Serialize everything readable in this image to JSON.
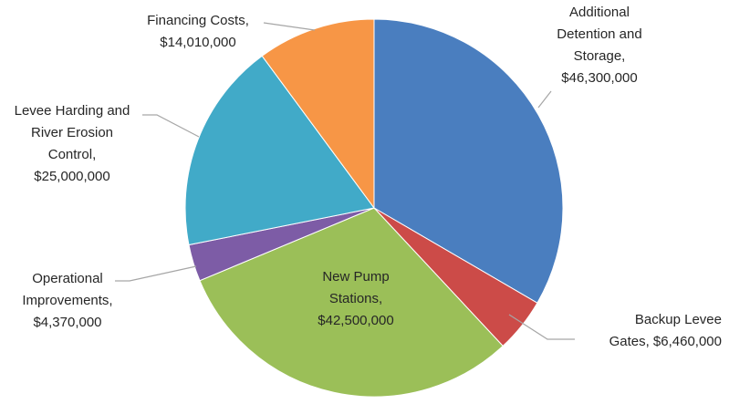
{
  "chart_data": {
    "type": "pie",
    "title": "",
    "slices": [
      {
        "lines": [
          "Additional",
          "Detention and",
          "Storage,",
          "$46,300,000"
        ],
        "value": 46300000,
        "color": "#4a7ebf"
      },
      {
        "lines": [
          "Backup Levee",
          "Gates,  $6,460,000"
        ],
        "value": 6460000,
        "color": "#cc4b48"
      },
      {
        "lines": [
          "New Pump",
          "Stations,",
          "$42,500,000"
        ],
        "value": 42500000,
        "color": "#9bbf58"
      },
      {
        "lines": [
          "Operational",
          "Improvements,",
          "$4,370,000"
        ],
        "value": 4370000,
        "color": "#7d5ca6"
      },
      {
        "lines": [
          "Levee Harding and",
          "River Erosion",
          "Control,",
          "$25,000,000"
        ],
        "value": 25000000,
        "color": "#41aac8"
      },
      {
        "lines": [
          "Financing Costs,",
          "$14,010,000"
        ],
        "value": 14010000,
        "color": "#f79646"
      }
    ],
    "start_angle_deg": 0,
    "direction": "clockwise",
    "legend": "none",
    "label_style": "category name and value, outside with leader lines (New Pump Stations inside)"
  }
}
